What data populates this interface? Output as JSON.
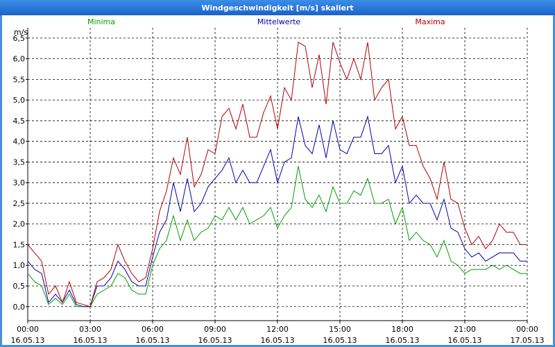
{
  "chart_data": {
    "type": "line",
    "title": "Windgeschwindigkeit [m/s] skaliert",
    "y_label": "m/s",
    "x": [
      0,
      1,
      2,
      3,
      4,
      5,
      6,
      7,
      8,
      9,
      10,
      11,
      12,
      13,
      14,
      15,
      16,
      17,
      18,
      19,
      20,
      21,
      22,
      23,
      24,
      25,
      26,
      27,
      28,
      29,
      30,
      31,
      32,
      33,
      34,
      35,
      36,
      37,
      38,
      39,
      40,
      41,
      42,
      43,
      44,
      45,
      46,
      47,
      48,
      49,
      50,
      51,
      52,
      53,
      54,
      55,
      56,
      57,
      58,
      59,
      60,
      61,
      62,
      63,
      64,
      65,
      66,
      67,
      68,
      69,
      70,
      71,
      72
    ],
    "xlim": [
      0,
      72
    ],
    "xticks": [
      {
        "value": 0,
        "label": "00:00\n16.05.13"
      },
      {
        "value": 9,
        "label": "03:00\n16.05.13"
      },
      {
        "value": 18,
        "label": "06:00\n16.05.13"
      },
      {
        "value": 27,
        "label": "09:00\n16.05.13"
      },
      {
        "value": 36,
        "label": "12:00\n16.05.13"
      },
      {
        "value": 45,
        "label": "15:00\n16.05.13"
      },
      {
        "value": 54,
        "label": "18:00\n16.05.13"
      },
      {
        "value": 63,
        "label": "21:00\n16.05.13"
      },
      {
        "value": 72,
        "label": "00:00\n17.05.13"
      }
    ],
    "ylim": [
      -0.34,
      6.75
    ],
    "yticks": [
      {
        "value": 0,
        "label": "0,0"
      },
      {
        "value": 0.5,
        "label": "0,5"
      },
      {
        "value": 1,
        "label": "1,0"
      },
      {
        "value": 1.5,
        "label": "1,5"
      },
      {
        "value": 2,
        "label": "2,0"
      },
      {
        "value": 2.5,
        "label": "2,5"
      },
      {
        "value": 3,
        "label": "3,0"
      },
      {
        "value": 3.5,
        "label": "3,5"
      },
      {
        "value": 4,
        "label": "4,0"
      },
      {
        "value": 4.5,
        "label": "4,5"
      },
      {
        "value": 5,
        "label": "5,0"
      },
      {
        "value": 5.5,
        "label": "5,5"
      },
      {
        "value": 6,
        "label": "6,0"
      },
      {
        "value": 6.5,
        "label": "6,5"
      }
    ],
    "grid": true,
    "series": [
      {
        "name": "Minima",
        "color": "#00a000",
        "values": [
          0.8,
          0.6,
          0.5,
          0.05,
          0.2,
          0.05,
          0.3,
          0.0,
          0.0,
          0.0,
          0.3,
          0.4,
          0.5,
          0.8,
          0.7,
          0.4,
          0.3,
          0.3,
          1.0,
          1.4,
          1.6,
          2.2,
          1.6,
          2.1,
          1.6,
          1.8,
          1.9,
          2.2,
          2.1,
          2.4,
          2.1,
          2.4,
          2.0,
          2.1,
          2.2,
          2.4,
          1.9,
          2.2,
          2.4,
          3.4,
          2.6,
          2.4,
          2.7,
          2.3,
          2.9,
          2.5,
          2.5,
          2.8,
          2.7,
          3.1,
          2.5,
          2.5,
          2.6,
          2.0,
          2.4,
          1.6,
          1.8,
          1.6,
          1.5,
          1.2,
          1.6,
          1.1,
          1.0,
          0.8,
          0.9,
          0.9,
          0.9,
          1.0,
          0.9,
          1.0,
          0.9,
          0.8,
          0.8
        ]
      },
      {
        "name": "Mittelwerte",
        "color": "#0000b0",
        "values": [
          1.1,
          0.9,
          0.8,
          0.1,
          0.3,
          0.1,
          0.4,
          0.05,
          0.0,
          0.0,
          0.5,
          0.5,
          0.7,
          1.1,
          0.9,
          0.6,
          0.5,
          0.5,
          1.2,
          1.8,
          2.1,
          3.0,
          2.3,
          3.1,
          2.3,
          2.5,
          2.9,
          3.1,
          3.3,
          3.6,
          3.0,
          3.3,
          3.0,
          3.0,
          3.4,
          3.8,
          3.0,
          3.5,
          3.6,
          4.6,
          3.9,
          3.7,
          4.4,
          3.6,
          4.5,
          3.8,
          3.7,
          4.1,
          4.1,
          4.6,
          3.7,
          3.7,
          3.9,
          3.0,
          3.4,
          2.5,
          2.7,
          2.5,
          2.5,
          2.1,
          2.6,
          1.9,
          1.8,
          1.4,
          1.2,
          1.3,
          1.1,
          1.2,
          1.3,
          1.3,
          1.3,
          1.1,
          1.1
        ]
      },
      {
        "name": "Maxima",
        "color": "#b00000",
        "values": [
          1.5,
          1.3,
          1.1,
          0.3,
          0.5,
          0.1,
          0.6,
          0.1,
          0.05,
          0.0,
          0.6,
          0.7,
          0.9,
          1.5,
          1.1,
          0.8,
          0.6,
          0.7,
          1.4,
          2.3,
          2.8,
          3.6,
          3.2,
          4.1,
          2.9,
          3.2,
          3.8,
          3.7,
          4.6,
          4.8,
          4.3,
          4.9,
          4.1,
          4.1,
          4.7,
          5.1,
          4.3,
          5.3,
          5.0,
          6.4,
          6.3,
          5.3,
          6.1,
          4.9,
          6.4,
          5.9,
          5.5,
          6.0,
          5.5,
          6.4,
          5.0,
          5.3,
          5.5,
          4.3,
          4.6,
          3.9,
          3.9,
          3.4,
          3.1,
          2.6,
          3.5,
          2.6,
          2.5,
          1.9,
          1.5,
          1.7,
          1.4,
          1.6,
          2.0,
          1.8,
          1.8,
          1.5,
          1.5
        ]
      }
    ]
  }
}
